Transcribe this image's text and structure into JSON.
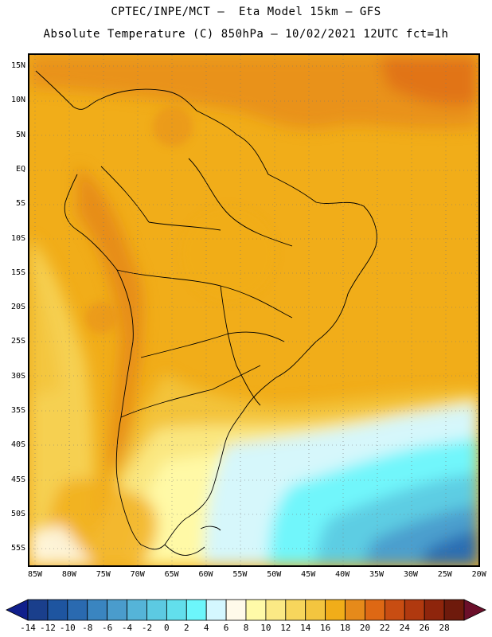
{
  "header": {
    "line1": "CPTEC/INPE/MCT –  Eta Model 15km – GFS",
    "line2": "Absolute Temperature (C) 850hPa – 10/02/2021 12UTC fct=1h"
  },
  "axes": {
    "lat_labels": [
      "15N",
      "10N",
      "5N",
      "EQ",
      "5S",
      "10S",
      "15S",
      "20S",
      "25S",
      "30S",
      "35S",
      "40S",
      "45S",
      "50S",
      "55S"
    ],
    "lon_labels": [
      "85W",
      "80W",
      "75W",
      "70W",
      "65W",
      "60W",
      "55W",
      "50W",
      "45W",
      "40W",
      "35W",
      "30W",
      "25W",
      "20W"
    ]
  },
  "colorbar": {
    "labels": [
      "-14",
      "-12",
      "-10",
      "-8",
      "-6",
      "-4",
      "-2",
      "0",
      "2",
      "4",
      "6",
      "8",
      "10",
      "12",
      "14",
      "16",
      "18",
      "20",
      "22",
      "24",
      "26",
      "28"
    ],
    "colors": [
      "#1a3f8c",
      "#1e55a0",
      "#2a6ab0",
      "#3a85c0",
      "#4a9ccc",
      "#55b4d8",
      "#5ccae2",
      "#62dfec",
      "#6cf6fb",
      "#d4f7ff",
      "#fffaea",
      "#fffaa8",
      "#fbe985",
      "#f7d65c",
      "#f3c53f",
      "#f1ad19",
      "#e68a1a",
      "#de6814",
      "#c84d12",
      "#b0390f",
      "#8e250c",
      "#6e1a0c"
    ],
    "low_end_color": "#101f8c",
    "high_end_color": "#6b0f2a"
  }
}
